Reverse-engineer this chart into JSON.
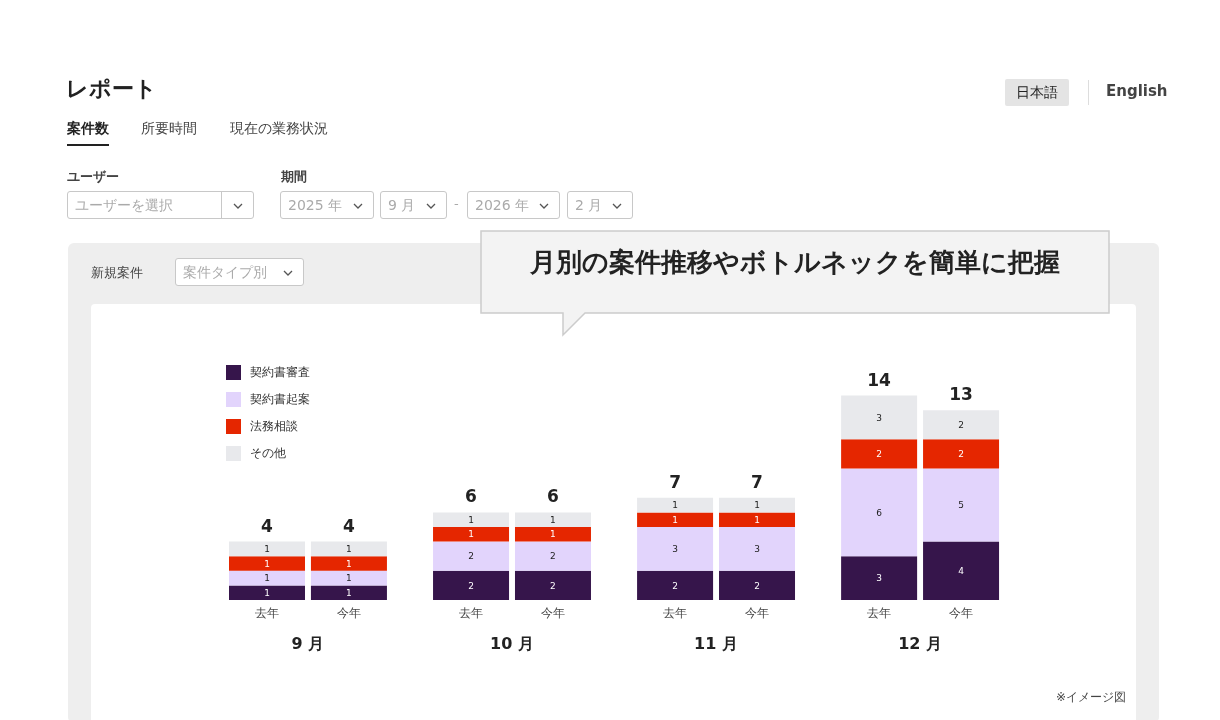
{
  "chart_data": {
    "type": "bar",
    "title": "レポート",
    "subtitle": "新規案件",
    "categories": [
      "去年",
      "今年",
      "去年",
      "今年",
      "去年",
      "今年",
      "去年",
      "今年"
    ],
    "stacked": true,
    "data_labels": true,
    "legend": "top left",
    "totals": [
      "4",
      "4",
      "6",
      "6",
      "7",
      "7",
      "14",
      "13"
    ],
    "series": [
      {
        "name": "契約書審査",
        "color": "#36154b",
        "values": [
          1,
          1,
          2,
          2,
          2,
          2,
          3,
          4
        ]
      },
      {
        "name": "契約書起案",
        "color": "#e2d4fc",
        "values": [
          1,
          1,
          2,
          2,
          3,
          3,
          6,
          5
        ]
      },
      {
        "name": "法務相談",
        "color": "#e52600",
        "values": [
          1,
          1,
          1,
          1,
          1,
          1,
          2,
          2
        ]
      },
      {
        "name": "その他",
        "color": "#e8e9ec",
        "values": [
          1,
          1,
          1,
          1,
          1,
          1,
          3,
          2
        ]
      }
    ],
    "annotations": [
      "9 月",
      "10 月",
      "11 月",
      "12 月",
      "日本語",
      "English",
      "案件数",
      "所要時間",
      "現在の業務状況",
      "ユーザー",
      "ユーザーを選択",
      "期間",
      "2025 年",
      "9 月",
      "-",
      "2026 年",
      "2 月",
      "案件タイプ別",
      "月別の案件推移やボトルネックを簡単に把握",
      "※イメージ図"
    ]
  }
}
